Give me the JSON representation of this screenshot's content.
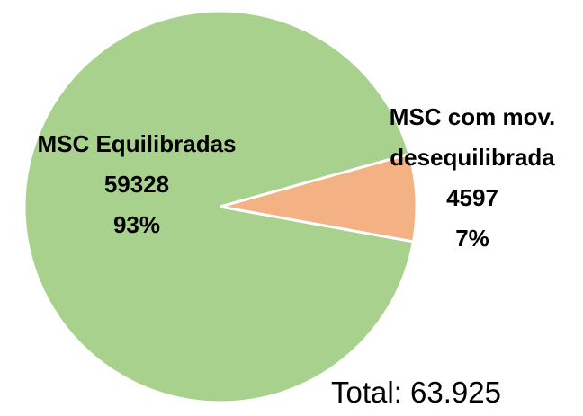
{
  "chart_data": {
    "type": "pie",
    "categories": [
      "MSC Equilibradas",
      "MSC com mov. desequilibrada"
    ],
    "values": [
      59328,
      4597
    ],
    "percent_labels": [
      "93%",
      "7%"
    ],
    "colors": [
      "#a9d18e",
      "#f4b183"
    ],
    "annotation": "Total: 63.925"
  }
}
